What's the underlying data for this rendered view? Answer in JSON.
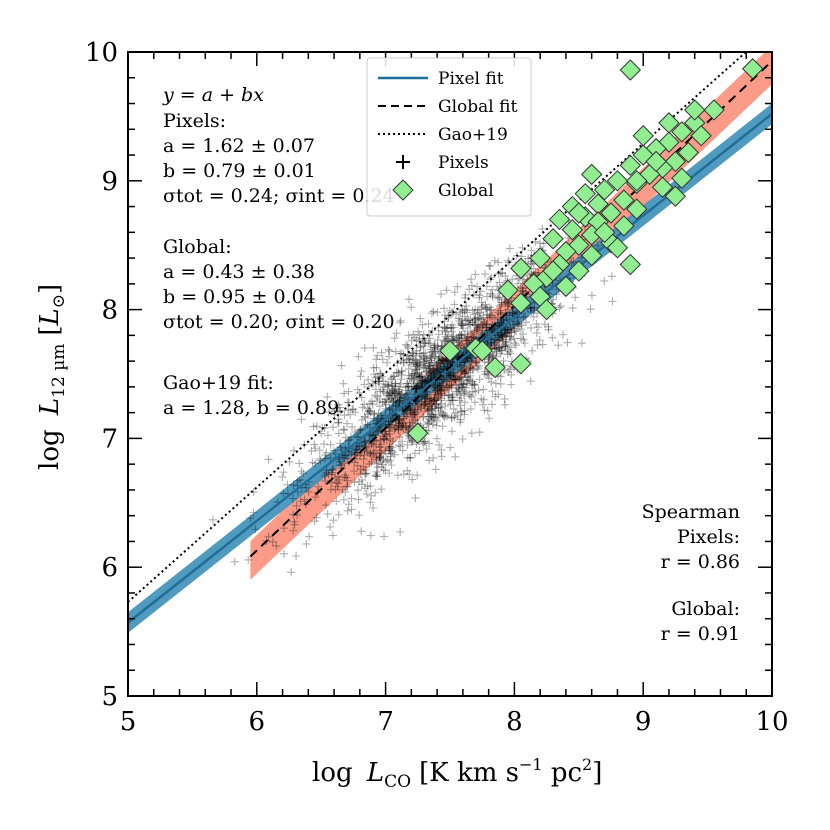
{
  "chart_data": {
    "type": "scatter",
    "xlabel": {
      "prefix": "log",
      "var": "L",
      "sub": "CO",
      "units_open": "[K km s",
      "units_exp": "−1",
      "units_mid": " pc",
      "units_exp2": "2",
      "units_close": "]"
    },
    "ylabel": {
      "prefix": "log",
      "var": "L",
      "sub": "12 µm",
      "units_open": "[",
      "units_var": "L",
      "units_sub": "⊙",
      "units_close": "]"
    },
    "xlim": [
      5,
      10
    ],
    "ylim": [
      5,
      10
    ],
    "xticks": [
      "5",
      "6",
      "7",
      "8",
      "9",
      "10"
    ],
    "yticks": [
      "5",
      "6",
      "7",
      "8",
      "9",
      "10"
    ],
    "fits": {
      "pixel": {
        "name": "Pixel fit",
        "a": 1.62,
        "b": 0.79,
        "x_range": [
          5,
          10
        ],
        "band": 0.08,
        "color": "#1f6e99"
      },
      "global": {
        "name": "Global fit",
        "a": 0.43,
        "b": 0.95,
        "x_range": [
          5.95,
          10
        ],
        "band_lo": 0.18,
        "band_hi": 0.12,
        "color": "#fa8a73"
      },
      "gao19": {
        "name": "Gao+19",
        "a": 1.28,
        "b": 0.89,
        "x_range": [
          5,
          10
        ]
      }
    },
    "legend": [
      {
        "label": "Pixel fit",
        "style": "solid"
      },
      {
        "label": "Global fit",
        "style": "dashed"
      },
      {
        "label": "Gao+19",
        "style": "dotted"
      },
      {
        "label": "Pixels",
        "style": "plus"
      },
      {
        "label": "Global",
        "style": "diamond"
      }
    ],
    "annotations": {
      "eq": "y = a + bx",
      "pixels_title": "Pixels:",
      "pixels_a": "a = 1.62 ± 0.07",
      "pixels_b": "b = 0.79 ± 0.01",
      "pixels_sigma": "σtot = 0.24; σint = 0.24",
      "global_title": "Global:",
      "global_a": "a = 0.43 ± 0.38",
      "global_b": "b = 0.95 ± 0.04",
      "global_sigma": "σtot = 0.20; σint = 0.20",
      "gao_title": "Gao+19 fit:",
      "gao_ab": "a = 1.28, b = 0.89",
      "spearman_title": "Spearman",
      "spearman_pixels": "Pixels:",
      "spearman_pixels_r": "r = 0.86",
      "spearman_global": "Global:",
      "spearman_global_r": "r = 0.91"
    },
    "pixels": {
      "n": 1800,
      "x_mean": 7.4,
      "x_sd": 0.5,
      "x_range": [
        5.2,
        8.9
      ],
      "y_scatter": 0.24
    },
    "global_points": [
      [
        9.85,
        9.87
      ],
      [
        8.9,
        9.86
      ],
      [
        9.55,
        9.55
      ],
      [
        9.4,
        9.45
      ],
      [
        9.3,
        9.38
      ],
      [
        9.45,
        9.35
      ],
      [
        9.2,
        9.3
      ],
      [
        9.1,
        9.25
      ],
      [
        9.35,
        9.22
      ],
      [
        9.0,
        9.2
      ],
      [
        9.25,
        9.15
      ],
      [
        9.15,
        9.1
      ],
      [
        8.9,
        9.12
      ],
      [
        9.05,
        9.05
      ],
      [
        8.6,
        9.05
      ],
      [
        9.3,
        9.02
      ],
      [
        8.8,
        9.0
      ],
      [
        8.95,
        8.98
      ],
      [
        9.15,
        8.95
      ],
      [
        8.7,
        8.93
      ],
      [
        8.55,
        8.9
      ],
      [
        9.25,
        8.88
      ],
      [
        8.85,
        8.85
      ],
      [
        8.65,
        8.82
      ],
      [
        8.45,
        8.8
      ],
      [
        8.95,
        8.78
      ],
      [
        8.75,
        8.75
      ],
      [
        8.55,
        8.72
      ],
      [
        8.35,
        8.7
      ],
      [
        8.65,
        8.68
      ],
      [
        8.85,
        8.65
      ],
      [
        8.45,
        8.62
      ],
      [
        8.6,
        8.58
      ],
      [
        8.3,
        8.55
      ],
      [
        8.75,
        8.52
      ],
      [
        8.5,
        8.5
      ],
      [
        8.4,
        8.45
      ],
      [
        8.8,
        8.48
      ],
      [
        8.6,
        8.42
      ],
      [
        8.2,
        8.4
      ],
      [
        8.35,
        8.35
      ],
      [
        8.05,
        8.32
      ],
      [
        8.5,
        8.3
      ],
      [
        8.25,
        8.25
      ],
      [
        8.15,
        8.2
      ],
      [
        8.4,
        8.18
      ],
      [
        7.95,
        8.15
      ],
      [
        8.2,
        8.1
      ],
      [
        8.05,
        8.05
      ],
      [
        8.25,
        8.0
      ],
      [
        9.0,
        9.35
      ],
      [
        9.2,
        9.45
      ],
      [
        9.4,
        9.55
      ],
      [
        8.9,
        8.35
      ],
      [
        7.5,
        7.68
      ],
      [
        7.7,
        7.7
      ],
      [
        7.75,
        7.68
      ],
      [
        7.85,
        7.55
      ],
      [
        8.05,
        7.58
      ],
      [
        7.25,
        7.04
      ],
      [
        8.7,
        8.6
      ],
      [
        8.95,
        9.0
      ],
      [
        9.1,
        9.15
      ],
      [
        8.5,
        8.75
      ],
      [
        8.3,
        8.3
      ]
    ]
  }
}
